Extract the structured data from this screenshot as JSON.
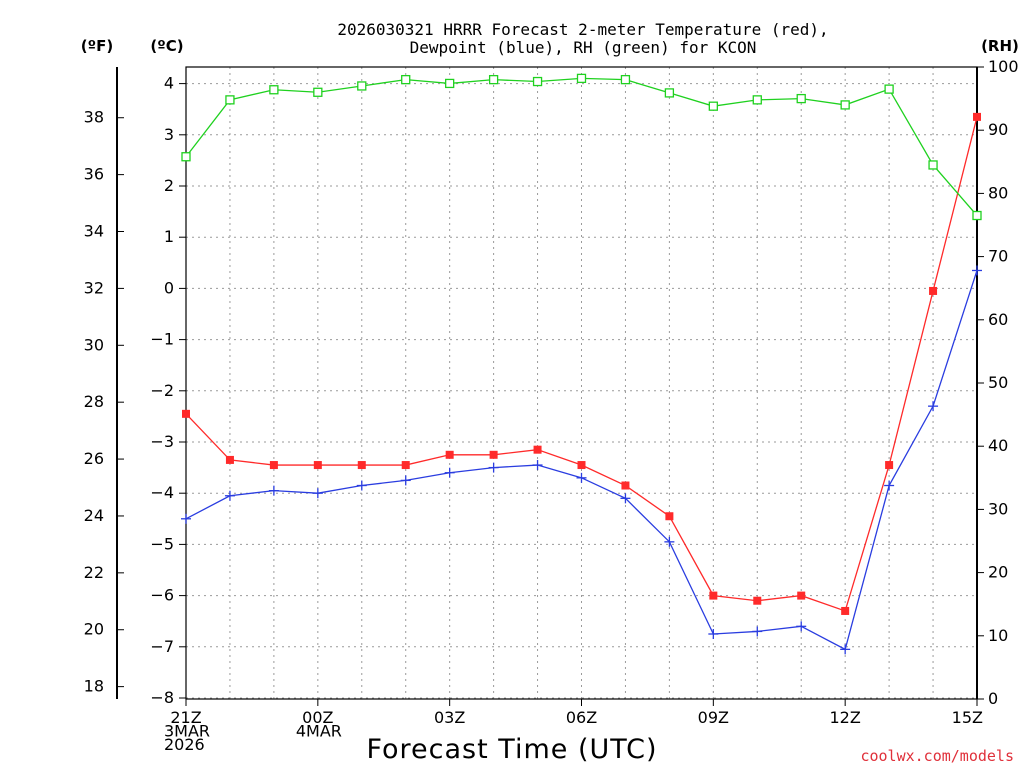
{
  "chart_data": {
    "type": "line",
    "title_line1": "2026030321 HRRR Forecast 2-meter Temperature (red),",
    "title_line2": "Dewpoint (blue), RH (green) for KCON",
    "unit_f": "(ºF)",
    "unit_c": "(ºC)",
    "unit_rh": "(RH)",
    "xlabel": "Forecast Time (UTC)",
    "credit": "coolwx.com/models",
    "x_hours": [
      0,
      1,
      2,
      3,
      4,
      5,
      6,
      7,
      8,
      9,
      10,
      11,
      12,
      13,
      14,
      15,
      16,
      17,
      18
    ],
    "x_ticks": [
      {
        "hour": 0,
        "lines": [
          "21Z",
          "3MAR",
          "2026"
        ]
      },
      {
        "hour": 3,
        "lines": [
          "00Z",
          "4MAR"
        ]
      },
      {
        "hour": 6,
        "lines": [
          "03Z"
        ]
      },
      {
        "hour": 9,
        "lines": [
          "06Z"
        ]
      },
      {
        "hour": 12,
        "lines": [
          "09Z"
        ]
      },
      {
        "hour": 15,
        "lines": [
          "12Z"
        ]
      },
      {
        "hour": 18,
        "lines": [
          "15Z"
        ]
      }
    ],
    "ylim_c": [
      -8,
      4.3
    ],
    "yticks_c": [
      4,
      3,
      2,
      1,
      0,
      -1,
      -2,
      -3,
      -4,
      -5,
      -6,
      -7,
      -8
    ],
    "yticks_f": [
      38,
      36,
      34,
      32,
      30,
      28,
      26,
      24,
      22,
      20,
      18
    ],
    "ylim_rh": [
      0,
      100
    ],
    "yticks_rh": [
      100,
      90,
      80,
      70,
      60,
      50,
      40,
      30,
      20,
      10,
      0
    ],
    "grid": true,
    "series": [
      {
        "name": "Temperature",
        "axis": "c",
        "color": "#ff2a2a",
        "marker": "filled-square",
        "values": [
          -2.45,
          -3.35,
          -3.45,
          -3.45,
          -3.45,
          -3.45,
          -3.25,
          -3.25,
          -3.15,
          -3.45,
          -3.85,
          -4.45,
          -6.0,
          -6.1,
          -6.0,
          -6.3,
          -3.45,
          -0.05,
          3.35
        ]
      },
      {
        "name": "Dewpoint",
        "axis": "c",
        "color": "#2a3de0",
        "marker": "plus",
        "values": [
          -4.5,
          -4.05,
          -3.95,
          -4.0,
          -3.85,
          -3.75,
          -3.6,
          -3.5,
          -3.45,
          -3.7,
          -4.1,
          -4.95,
          -6.75,
          -6.7,
          -6.6,
          -7.05,
          -3.85,
          -2.3,
          0.35
        ]
      },
      {
        "name": "RH",
        "axis": "rh",
        "color": "#1fd11f",
        "marker": "open-square",
        "values": [
          85.8,
          94.8,
          96.4,
          96.0,
          97.0,
          98.0,
          97.4,
          98.0,
          97.7,
          98.2,
          98.0,
          95.9,
          93.8,
          94.8,
          95.0,
          94.0,
          96.5,
          84.5,
          76.5
        ]
      }
    ]
  }
}
